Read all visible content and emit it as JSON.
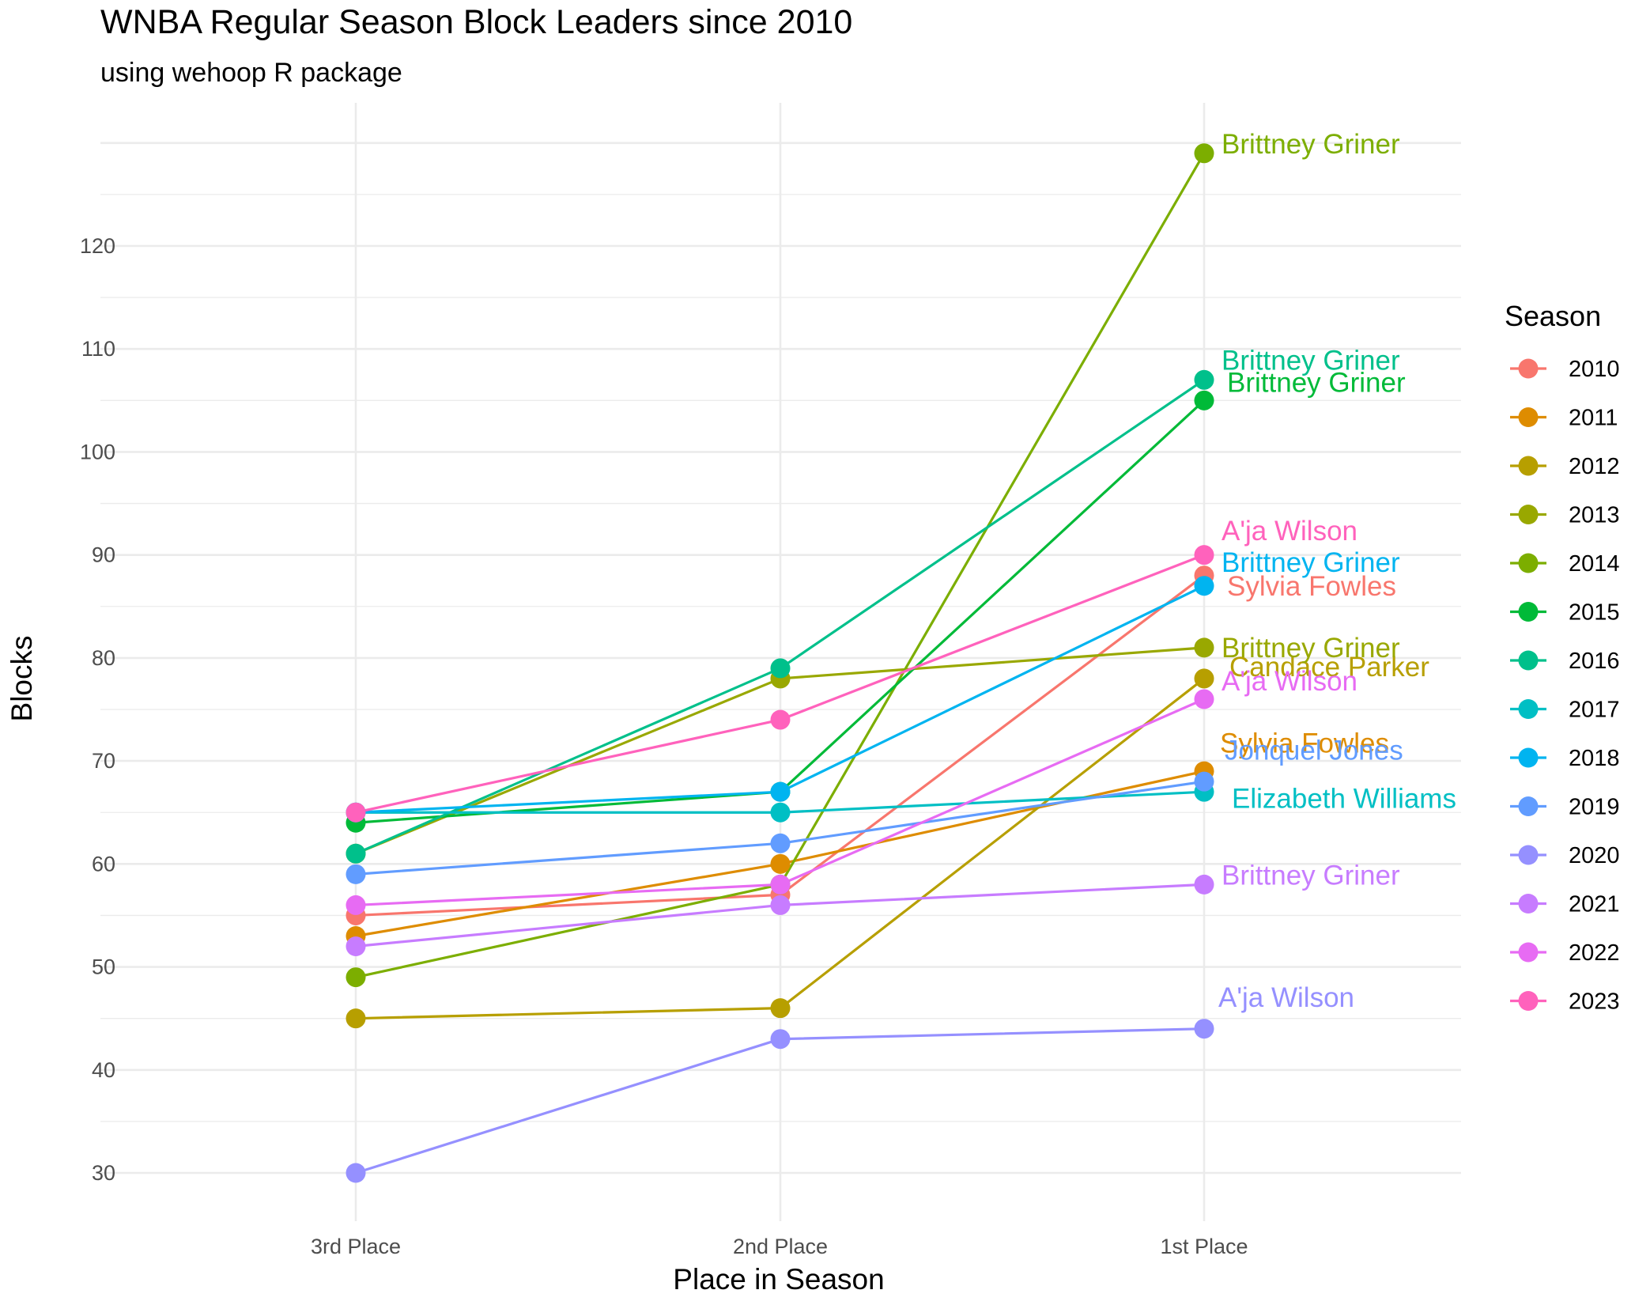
{
  "chart_data": {
    "type": "line",
    "title": "WNBA Regular Season Block Leaders since 2010",
    "subtitle": "using wehoop R package",
    "xlabel": "Place in Season",
    "ylabel": "Blocks",
    "categories": [
      "3rd Place",
      "2nd Place",
      "1st Place"
    ],
    "ylim": [
      25,
      134
    ],
    "yticks": [
      30,
      40,
      50,
      60,
      70,
      80,
      90,
      100,
      110,
      120
    ],
    "grid": true,
    "legend": {
      "title": "Season",
      "position": "right"
    },
    "series": [
      {
        "name": "2010",
        "color": "#F8766D",
        "values": [
          55,
          57,
          88
        ],
        "leader": "Sylvia Fowles"
      },
      {
        "name": "2011",
        "color": "#DE8C00",
        "values": [
          53,
          60,
          69
        ],
        "leader": "Sylvia Fowles"
      },
      {
        "name": "2012",
        "color": "#B79F00",
        "values": [
          45,
          46,
          78
        ],
        "leader": "Candace Parker"
      },
      {
        "name": "2013",
        "color": "#99A800",
        "values": [
          61,
          78,
          81
        ],
        "leader": "Brittney Griner"
      },
      {
        "name": "2014",
        "color": "#7CAE00",
        "values": [
          49,
          58,
          129
        ],
        "leader": "Brittney Griner"
      },
      {
        "name": "2015",
        "color": "#00BA38",
        "values": [
          64,
          67,
          105
        ],
        "leader": "Brittney Griner"
      },
      {
        "name": "2016",
        "color": "#00C08B",
        "values": [
          61,
          79,
          107
        ],
        "leader": "Brittney Griner"
      },
      {
        "name": "2017",
        "color": "#00BFC4",
        "values": [
          65,
          65,
          67
        ],
        "leader": "Elizabeth Williams"
      },
      {
        "name": "2018",
        "color": "#00B4F0",
        "values": [
          65,
          67,
          87
        ],
        "leader": "Brittney Griner"
      },
      {
        "name": "2019",
        "color": "#619CFF",
        "values": [
          59,
          62,
          68
        ],
        "leader": "Jonquel Jones"
      },
      {
        "name": "2020",
        "color": "#9590FF",
        "values": [
          30,
          43,
          44
        ],
        "leader": "A'ja Wilson"
      },
      {
        "name": "2021",
        "color": "#C77CFF",
        "values": [
          52,
          56,
          58
        ],
        "leader": "Brittney Griner"
      },
      {
        "name": "2022",
        "color": "#E76BF3",
        "values": [
          56,
          58,
          76
        ],
        "leader": "A'ja Wilson"
      },
      {
        "name": "2023",
        "color": "#FF62BC",
        "values": [
          65,
          74,
          90
        ],
        "leader": "A'ja Wilson"
      }
    ]
  }
}
